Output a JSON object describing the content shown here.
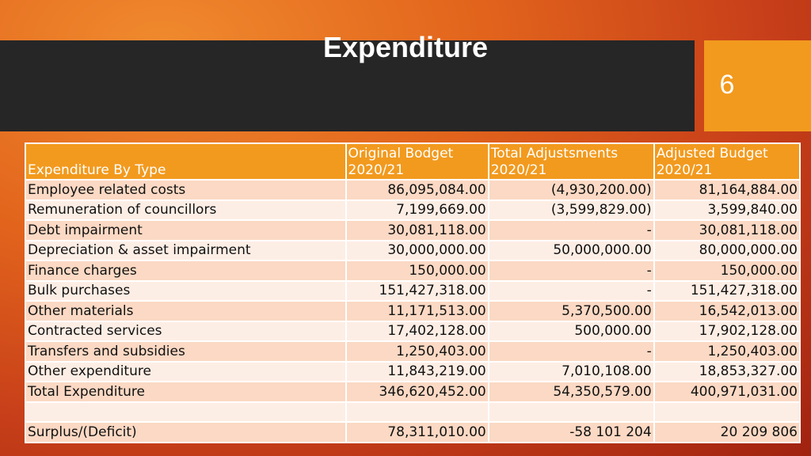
{
  "slide": {
    "title": "Expenditure",
    "page_number": "6"
  },
  "table": {
    "headers": {
      "col1": "Expenditure By Type",
      "col2_l1": "Original Bodget",
      "col2_l2": "2020/21",
      "col3_l1": "Total Adjustsments",
      "col3_l2": "2020/21",
      "col4_l1": "Adjusted Budget",
      "col4_l2": "2020/21"
    },
    "rows": [
      {
        "type": "Employee related costs",
        "original": "86,095,084.00",
        "adjustments": "(4,930,200.00)",
        "adjusted": "81,164,884.00"
      },
      {
        "type": "Remuneration of councillors",
        "original": "7,199,669.00",
        "adjustments": "(3,599,829.00)",
        "adjusted": "3,599,840.00"
      },
      {
        "type": "Debt impairment",
        "original": "30,081,118.00",
        "adjustments": "-",
        "adjusted": "30,081,118.00"
      },
      {
        "type": "Depreciation & asset impairment",
        "original": "30,000,000.00",
        "adjustments": "50,000,000.00",
        "adjusted": "80,000,000.00"
      },
      {
        "type": "Finance charges",
        "original": "150,000.00",
        "adjustments": "-",
        "adjusted": "150,000.00"
      },
      {
        "type": "Bulk purchases",
        "original": "151,427,318.00",
        "adjustments": "-",
        "adjusted": "151,427,318.00"
      },
      {
        "type": "Other materials",
        "original": "11,171,513.00",
        "adjustments": "5,370,500.00",
        "adjusted": "16,542,013.00"
      },
      {
        "type": "Contracted services",
        "original": "17,402,128.00",
        "adjustments": "500,000.00",
        "adjusted": "17,902,128.00"
      },
      {
        "type": "Transfers and subsidies",
        "original": "1,250,403.00",
        "adjustments": "-",
        "adjusted": "1,250,403.00"
      },
      {
        "type": "Other expenditure",
        "original": "11,843,219.00",
        "adjustments": "7,010,108.00",
        "adjusted": "18,853,327.00"
      },
      {
        "type": "Total Expenditure",
        "original": "346,620,452.00",
        "adjustments": "54,350,579.00",
        "adjusted": "400,971,031.00"
      },
      {
        "type": "",
        "original": "",
        "adjustments": "",
        "adjusted": ""
      },
      {
        "type": "Surplus/(Deficit)",
        "original": "78,311,010.00",
        "adjustments": "-58 101 204",
        "adjusted": "20 209 806"
      }
    ]
  }
}
